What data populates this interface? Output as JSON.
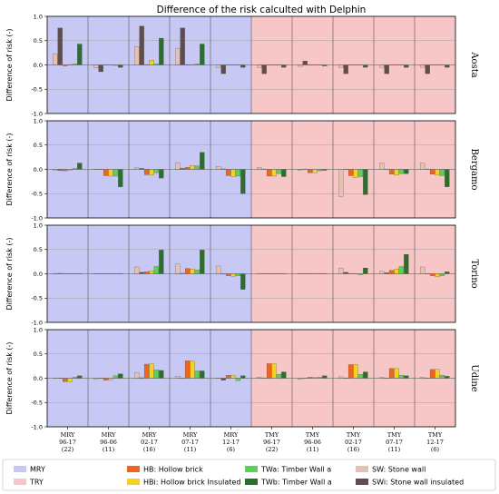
{
  "chart_data": {
    "type": "bar",
    "title": "Difference of the risk calculted with Delphin",
    "ylabel": "Difference of risk (-)",
    "ylim": [
      -1.0,
      1.0
    ],
    "yticks": [
      "1.0",
      "0.5",
      "0.0",
      "-0.5",
      "-1.0"
    ],
    "grid": true,
    "legend_position": "bottom",
    "categories": [
      [
        "MRY",
        "96-17",
        "(22)"
      ],
      [
        "MRY",
        "96-06",
        "(11)"
      ],
      [
        "MRY",
        "02-17",
        "(16)"
      ],
      [
        "MRY",
        "07-17",
        "(11)"
      ],
      [
        "MRY",
        "12-17",
        "(6)"
      ],
      [
        "TMY",
        "96-17",
        "(22)"
      ],
      [
        "TMY",
        "96-06",
        "(11)"
      ],
      [
        "TMY",
        "02-17",
        "(16)"
      ],
      [
        "TMY",
        "07-17",
        "(11)"
      ],
      [
        "TMY",
        "12-17",
        "(6)"
      ]
    ],
    "backgrounds": [
      {
        "name": "MRY",
        "color": "#c8c8f5"
      },
      {
        "name": "TRY",
        "color": "#f7c6c6"
      }
    ],
    "series": [
      {
        "name": "SW: Stone wall",
        "color": "#e6c1b0"
      },
      {
        "name": "SWi: Stone wall insulated",
        "color": "#5e4e4e"
      },
      {
        "name": "HB: Hollow brick",
        "color": "#f0641e"
      },
      {
        "name": "HBi: Hollow brick Insulated",
        "color": "#f5d21e"
      },
      {
        "name": "TWa: Timber Wall a",
        "color": "#5ad25a"
      },
      {
        "name": "TWb: Timber Wall a",
        "color": "#2d6e2d"
      }
    ],
    "bar_order": [
      "SW: Stone wall",
      "SWi: Stone wall insulated",
      "HB: Hollow brick",
      "HBi: Hollow brick Insulated",
      "TWa: Timber Wall a",
      "TWb: Timber Wall a"
    ],
    "panels": [
      {
        "city": "Aosta",
        "values": [
          [
            0.22,
            0.76,
            -0.02,
            0.0,
            0.02,
            0.43
          ],
          [
            -0.06,
            -0.14,
            0.0,
            0.0,
            -0.01,
            -0.05
          ],
          [
            0.38,
            0.8,
            0.0,
            0.1,
            0.02,
            0.55
          ],
          [
            0.33,
            0.76,
            0.0,
            0.0,
            0.02,
            0.43
          ],
          [
            -0.05,
            -0.18,
            0.0,
            0.0,
            0.0,
            -0.05
          ],
          [
            -0.05,
            -0.18,
            0.0,
            0.0,
            0.0,
            -0.05
          ],
          [
            -0.03,
            0.08,
            0.0,
            0.0,
            0.0,
            -0.02
          ],
          [
            -0.05,
            -0.18,
            0.0,
            0.0,
            0.0,
            -0.05
          ],
          [
            -0.05,
            -0.18,
            0.0,
            0.0,
            0.0,
            -0.05
          ],
          [
            -0.05,
            -0.18,
            0.0,
            0.0,
            0.0,
            -0.05
          ]
        ]
      },
      {
        "city": "Bergamo",
        "values": [
          [
            -0.02,
            -0.02,
            -0.03,
            -0.02,
            0.02,
            0.13
          ],
          [
            0.0,
            0.0,
            -0.13,
            -0.14,
            -0.14,
            -0.36
          ],
          [
            0.03,
            0.02,
            -0.11,
            -0.12,
            -0.07,
            -0.18
          ],
          [
            0.14,
            0.02,
            0.04,
            0.08,
            0.07,
            0.35
          ],
          [
            0.06,
            0.01,
            -0.13,
            -0.15,
            -0.14,
            -0.5
          ],
          [
            0.04,
            0.0,
            -0.14,
            -0.14,
            -0.09,
            -0.15
          ],
          [
            -0.02,
            0.0,
            -0.07,
            -0.07,
            -0.03,
            -0.02
          ],
          [
            -0.56,
            0.0,
            -0.13,
            -0.17,
            -0.15,
            -0.52
          ],
          [
            0.13,
            0.0,
            -0.1,
            -0.12,
            -0.09,
            -0.09
          ],
          [
            0.13,
            0.0,
            -0.1,
            -0.12,
            -0.13,
            -0.36
          ]
        ]
      },
      {
        "city": "Torino",
        "values": [
          [
            0.0,
            0.01,
            0.0,
            0.0,
            0.0,
            0.0
          ],
          [
            0.0,
            0.0,
            0.0,
            0.0,
            0.0,
            0.0
          ],
          [
            0.14,
            0.03,
            0.04,
            0.06,
            0.15,
            0.49
          ],
          [
            0.2,
            0.01,
            0.11,
            0.1,
            0.08,
            0.49
          ],
          [
            0.16,
            0.0,
            -0.04,
            -0.05,
            -0.04,
            -0.32
          ],
          [
            0.0,
            0.0,
            0.0,
            0.0,
            0.0,
            0.0
          ],
          [
            0.0,
            0.0,
            0.0,
            0.0,
            0.0,
            0.0
          ],
          [
            0.12,
            0.03,
            0.0,
            0.0,
            -0.02,
            0.12
          ],
          [
            0.05,
            0.02,
            0.07,
            0.1,
            0.15,
            0.4
          ],
          [
            0.14,
            0.0,
            -0.04,
            -0.06,
            -0.04,
            0.04
          ]
        ]
      },
      {
        "city": "Udine",
        "values": [
          [
            0.0,
            0.0,
            -0.07,
            -0.08,
            0.02,
            0.05
          ],
          [
            -0.02,
            0.0,
            -0.04,
            -0.03,
            0.05,
            0.09
          ],
          [
            0.11,
            0.01,
            0.29,
            0.3,
            0.17,
            0.16
          ],
          [
            0.04,
            0.0,
            0.36,
            0.35,
            0.15,
            0.15
          ],
          [
            0.0,
            -0.04,
            0.06,
            0.06,
            -0.05,
            0.05
          ],
          [
            0.02,
            0.0,
            0.3,
            0.3,
            0.08,
            0.13
          ],
          [
            -0.02,
            0.0,
            0.02,
            0.02,
            0.02,
            0.05
          ],
          [
            0.03,
            0.0,
            0.28,
            0.28,
            0.08,
            0.13
          ],
          [
            0.02,
            0.0,
            0.2,
            0.2,
            0.06,
            0.05
          ],
          [
            0.02,
            0.0,
            0.18,
            0.18,
            0.06,
            0.04
          ]
        ]
      }
    ]
  }
}
